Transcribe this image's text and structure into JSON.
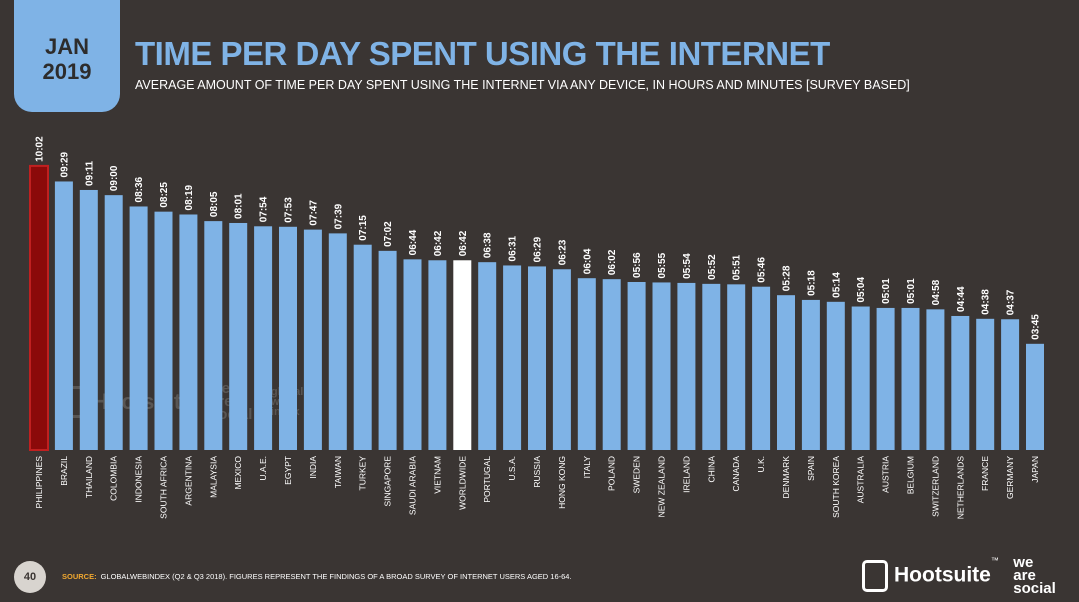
{
  "header": {
    "month": "JAN",
    "year": "2019"
  },
  "chart_data": {
    "type": "bar",
    "title": "TIME PER DAY SPENT USING THE INTERNET",
    "subtitle": "AVERAGE AMOUNT OF TIME PER DAY SPENT USING THE INTERNET VIA ANY DEVICE, IN HOURS AND MINUTES [SURVEY BASED]",
    "xlabel": "",
    "ylabel": "",
    "ylim": [
      0,
      10.1
    ],
    "categories": [
      "PHILIPPINES",
      "BRAZIL",
      "THAILAND",
      "COLOMBIA",
      "INDONESIA",
      "SOUTH AFRICA",
      "ARGENTINA",
      "MALAYSIA",
      "MEXICO",
      "U.A.E.",
      "EGYPT",
      "INDIA",
      "TAIWAN",
      "TURKEY",
      "SINGAPORE",
      "SAUDI ARABIA",
      "VIETNAM",
      "WORLDWIDE",
      "PORTUGAL",
      "U.S.A.",
      "RUSSIA",
      "HONG KONG",
      "ITALY",
      "POLAND",
      "SWEDEN",
      "NEW ZEALAND",
      "IRELAND",
      "CHINA",
      "CANADA",
      "U.K.",
      "DENMARK",
      "SPAIN",
      "SOUTH KOREA",
      "AUSTRALIA",
      "AUSTRIA",
      "BELGIUM",
      "SWITZERLAND",
      "NETHERLANDS",
      "FRANCE",
      "GERMANY",
      "JAPAN"
    ],
    "labels": [
      "10:02",
      "09:29",
      "09:11",
      "09:00",
      "08:36",
      "08:25",
      "08:19",
      "08:05",
      "08:01",
      "07:54",
      "07:53",
      "07:47",
      "07:39",
      "07:15",
      "07:02",
      "06:44",
      "06:42",
      "06:42",
      "06:38",
      "06:31",
      "06:29",
      "06:23",
      "06:04",
      "06:02",
      "05:56",
      "05:55",
      "05:54",
      "05:52",
      "05:51",
      "05:46",
      "05:28",
      "05:18",
      "05:14",
      "05:04",
      "05:01",
      "05:01",
      "04:58",
      "04:44",
      "04:38",
      "04:37",
      "03:45"
    ],
    "values": [
      10.033,
      9.483,
      9.183,
      9.0,
      8.6,
      8.417,
      8.317,
      8.083,
      8.017,
      7.9,
      7.883,
      7.783,
      7.65,
      7.25,
      7.033,
      6.733,
      6.7,
      6.7,
      6.633,
      6.517,
      6.483,
      6.383,
      6.067,
      6.033,
      5.933,
      5.917,
      5.9,
      5.867,
      5.85,
      5.767,
      5.467,
      5.3,
      5.233,
      5.067,
      5.017,
      5.017,
      4.967,
      4.733,
      4.633,
      4.617,
      3.75
    ],
    "colors": {
      "default": "#7fb3e6",
      "highlight": "#8b0a0a",
      "highlight_border": "#c02020",
      "worldwide": "#ffffff"
    },
    "highlight_index": 0,
    "worldwide_index": 17
  },
  "watermark": {
    "hootsuite": "Hootsuite",
    "was": [
      "we",
      "are",
      "social"
    ],
    "gwi": [
      "global",
      "web",
      "index"
    ]
  },
  "footer": {
    "page_number": "40",
    "source_label": "SOURCE:",
    "source_text": "GLOBALWEBINDEX (Q2 & Q3 2018). FIGURES REPRESENT THE FINDINGS OF A BROAD SURVEY OF INTERNET USERS AGED 16-64.",
    "brand": "Hootsuite",
    "tm": "™",
    "brand2": [
      "we",
      "are",
      "social"
    ]
  }
}
